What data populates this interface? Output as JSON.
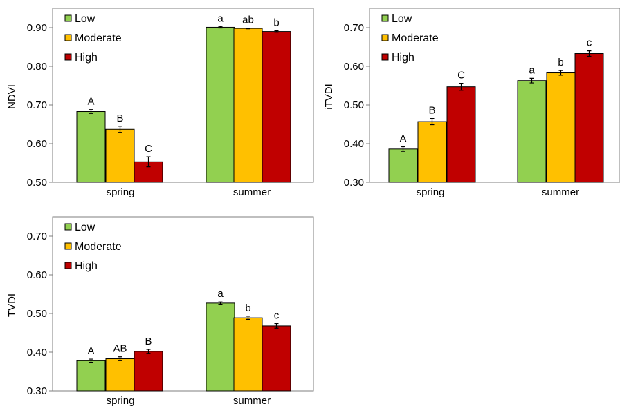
{
  "colors": {
    "Low": "#92d050",
    "Moderate": "#ffc000",
    "High": "#c00000"
  },
  "chart_data": [
    {
      "type": "bar",
      "ylabel": "NDVI",
      "ylim": [
        0.5,
        0.95
      ],
      "yticks": [
        "0.50",
        "0.60",
        "0.70",
        "0.80",
        "0.90"
      ],
      "categories": [
        "spring",
        "summer"
      ],
      "legend": "top-left",
      "series": [
        {
          "name": "Low",
          "values": [
            0.683,
            0.901
          ],
          "errors": [
            0.005,
            0.002
          ],
          "letters": [
            "A",
            "a"
          ]
        },
        {
          "name": "Moderate",
          "values": [
            0.637,
            0.898
          ],
          "errors": [
            0.008,
            0.001
          ],
          "letters": [
            "B",
            "ab"
          ]
        },
        {
          "name": "High",
          "values": [
            0.553,
            0.89
          ],
          "errors": [
            0.013,
            0.002
          ],
          "letters": [
            "C",
            "b"
          ]
        }
      ]
    },
    {
      "type": "bar",
      "ylabel": "iTVDI",
      "ylim": [
        0.3,
        0.75
      ],
      "yticks": [
        "0.30",
        "0.40",
        "0.50",
        "0.60",
        "0.70"
      ],
      "categories": [
        "spring",
        "summer"
      ],
      "legend": "top-left",
      "series": [
        {
          "name": "Low",
          "values": [
            0.386,
            0.563
          ],
          "errors": [
            0.006,
            0.006
          ],
          "letters": [
            "A",
            "a"
          ]
        },
        {
          "name": "Moderate",
          "values": [
            0.457,
            0.583
          ],
          "errors": [
            0.008,
            0.006
          ],
          "letters": [
            "B",
            "b"
          ]
        },
        {
          "name": "High",
          "values": [
            0.547,
            0.633
          ],
          "errors": [
            0.009,
            0.007
          ],
          "letters": [
            "C",
            "c"
          ]
        }
      ]
    },
    {
      "type": "bar",
      "ylabel": "TVDI",
      "ylim": [
        0.3,
        0.75
      ],
      "yticks": [
        "0.30",
        "0.40",
        "0.50",
        "0.60",
        "0.70"
      ],
      "categories": [
        "spring",
        "summer"
      ],
      "legend": "top-left",
      "series": [
        {
          "name": "Low",
          "values": [
            0.378,
            0.527
          ],
          "errors": [
            0.004,
            0.003
          ],
          "letters": [
            "A",
            "a"
          ]
        },
        {
          "name": "Moderate",
          "values": [
            0.383,
            0.489
          ],
          "errors": [
            0.005,
            0.004
          ],
          "letters": [
            "AB",
            "b"
          ]
        },
        {
          "name": "High",
          "values": [
            0.402,
            0.468
          ],
          "errors": [
            0.005,
            0.006
          ],
          "letters": [
            "B",
            "c"
          ]
        }
      ]
    }
  ]
}
